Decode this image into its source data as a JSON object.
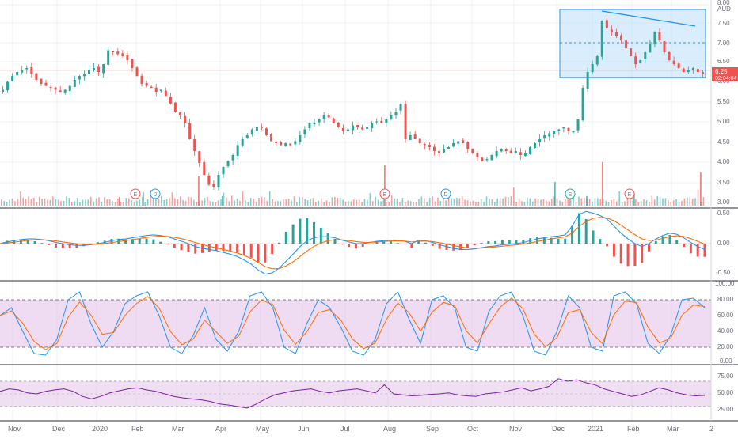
{
  "symbol": {
    "currency": "AUD",
    "last_price": "6.25",
    "countdown": "02:04:04",
    "colors": {
      "up": "#26a69a",
      "down": "#ef5350",
      "price_tag": "#ef5350"
    }
  },
  "price_axis": {
    "ticks": [
      "8.00",
      "7.50",
      "7.00",
      "6.50",
      "6.00",
      "5.50",
      "5.00",
      "4.50",
      "4.00",
      "3.50",
      "3.00"
    ]
  },
  "macd_axis": {
    "ticks": [
      "0.50",
      "0.00",
      "-0.50"
    ]
  },
  "stoch_axis": {
    "ticks": [
      "100.00",
      "80.00",
      "60.00",
      "40.00",
      "20.00",
      "0.00"
    ]
  },
  "rsi_axis": {
    "ticks": [
      "75.00",
      "50.00",
      "25.00"
    ]
  },
  "time_axis": {
    "labels": [
      "Nov",
      "Dec",
      "2020",
      "Feb",
      "Mar",
      "Apr",
      "May",
      "Jun",
      "Jul",
      "Aug",
      "Sep",
      "Oct",
      "Nov",
      "Dec",
      "2021",
      "Feb",
      "Mar",
      "2"
    ]
  },
  "events": [
    {
      "letter": "E",
      "color": "#ef5350"
    },
    {
      "letter": "D",
      "color": "#2196f3"
    },
    {
      "letter": "E",
      "color": "#ef5350"
    },
    {
      "letter": "D",
      "color": "#2196f3"
    },
    {
      "letter": "S",
      "color": "#26a69a"
    },
    {
      "letter": "E",
      "color": "#ef5350"
    }
  ],
  "chart_data": {
    "type": "candlestick",
    "price_range": [
      3.0,
      8.0
    ],
    "closes": [
      5.85,
      6.05,
      6.2,
      6.3,
      6.35,
      6.4,
      6.25,
      6.1,
      6.0,
      5.95,
      5.9,
      5.85,
      5.8,
      5.85,
      5.95,
      6.1,
      6.2,
      6.25,
      6.35,
      6.4,
      6.3,
      6.5,
      6.85,
      6.8,
      6.75,
      6.7,
      6.6,
      6.4,
      6.2,
      6.0,
      5.95,
      5.9,
      5.8,
      5.85,
      5.7,
      5.5,
      5.3,
      5.2,
      5.0,
      4.6,
      4.3,
      4.0,
      3.7,
      3.45,
      3.4,
      3.7,
      3.9,
      4.05,
      4.2,
      4.45,
      4.6,
      4.7,
      4.85,
      4.9,
      4.9,
      4.7,
      4.55,
      4.5,
      4.45,
      4.5,
      4.45,
      4.55,
      4.7,
      4.85,
      5.0,
      5.0,
      5.1,
      5.2,
      5.15,
      5.0,
      4.9,
      4.8,
      4.85,
      4.95,
      4.9,
      4.85,
      4.9,
      5.0,
      5.05,
      5.0,
      5.1,
      5.2,
      5.3,
      5.5,
      4.6,
      4.7,
      4.6,
      4.5,
      4.45,
      4.4,
      4.3,
      4.25,
      4.35,
      4.4,
      4.5,
      4.55,
      4.5,
      4.35,
      4.25,
      4.15,
      4.05,
      4.1,
      4.2,
      4.3,
      4.35,
      4.3,
      4.25,
      4.3,
      4.2,
      4.25,
      4.4,
      4.5,
      4.6,
      4.7,
      4.75,
      4.8,
      4.85,
      4.9,
      4.8,
      4.8,
      5.1,
      5.9,
      6.3,
      6.5,
      6.7,
      7.6,
      7.4,
      7.3,
      7.2,
      7.1,
      6.9,
      6.7,
      6.5,
      6.6,
      6.8,
      7.0,
      7.3,
      7.1,
      6.8,
      6.6,
      6.5,
      6.4,
      6.3,
      6.35,
      6.4,
      6.3,
      6.25
    ],
    "macd": [
      0.0,
      0.03,
      0.05,
      0.07,
      0.08,
      0.08,
      0.07,
      0.05,
      0.02,
      0.0,
      -0.02,
      -0.03,
      -0.03,
      -0.02,
      0.0,
      0.02,
      0.05,
      0.07,
      0.08,
      0.1,
      0.12,
      0.14,
      0.15,
      0.14,
      0.12,
      0.08,
      0.04,
      0.0,
      -0.05,
      -0.08,
      -0.1,
      -0.12,
      -0.15,
      -0.18,
      -0.22,
      -0.28,
      -0.35,
      -0.45,
      -0.52,
      -0.5,
      -0.42,
      -0.3,
      -0.18,
      -0.05,
      0.05,
      0.1,
      0.12,
      0.12,
      0.1,
      0.06,
      0.03,
      0.0,
      0.0,
      0.02,
      0.04,
      0.05,
      0.06,
      0.05,
      0.04,
      0.0,
      0.06,
      0.05,
      0.02,
      -0.02,
      -0.05,
      -0.08,
      -0.1,
      -0.1,
      -0.09,
      -0.07,
      -0.05,
      -0.04,
      -0.02,
      -0.01,
      0.0,
      0.02,
      0.05,
      0.08,
      0.1,
      0.12,
      0.13,
      0.15,
      0.3,
      0.5,
      0.55,
      0.52,
      0.48,
      0.42,
      0.3,
      0.18,
      0.08,
      0.0,
      -0.05,
      0.0,
      0.08,
      0.14,
      0.18,
      0.16,
      0.1,
      0.02,
      -0.05,
      -0.1
    ],
    "stoch_k": [
      60,
      70,
      40,
      12,
      10,
      30,
      80,
      90,
      50,
      20,
      40,
      75,
      85,
      90,
      60,
      20,
      12,
      35,
      70,
      30,
      15,
      40,
      85,
      90,
      70,
      20,
      12,
      50,
      80,
      70,
      45,
      15,
      10,
      30,
      75,
      90,
      55,
      25,
      80,
      85,
      70,
      20,
      15,
      65,
      85,
      90,
      60,
      15,
      10,
      40,
      85,
      70,
      20,
      15,
      85,
      90,
      75,
      25,
      12,
      35,
      80,
      82,
      70
    ],
    "rsi": [
      55,
      60,
      58,
      52,
      50,
      55,
      58,
      60,
      55,
      45,
      40,
      45,
      52,
      56,
      60,
      62,
      58,
      55,
      50,
      45,
      42,
      40,
      38,
      35,
      30,
      28,
      25,
      22,
      30,
      40,
      48,
      52,
      56,
      58,
      60,
      55,
      52,
      56,
      58,
      60,
      56,
      52,
      68,
      50,
      48,
      46,
      47,
      49,
      50,
      52,
      48,
      46,
      45,
      50,
      52,
      54,
      58,
      62,
      56,
      60,
      65,
      80,
      75,
      78,
      72,
      68,
      60,
      55,
      50,
      45,
      48,
      55,
      62,
      58,
      52,
      48,
      46,
      47
    ],
    "volume_spikes": [
      0.18,
      0.28,
      0.62,
      0.2,
      0.85,
      0.5,
      0.22,
      0.2,
      0.92,
      0.25,
      0.7
    ]
  }
}
